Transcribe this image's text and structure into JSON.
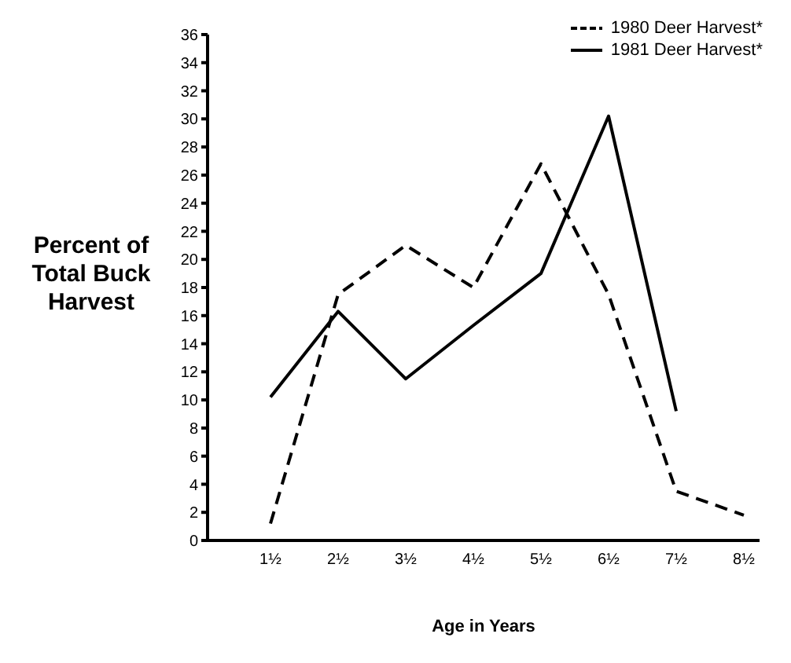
{
  "chart_data": {
    "type": "line",
    "xlabel": "Age in Years",
    "ylabel": "Percent of Total Buck Harvest",
    "categories": [
      "1½",
      "2½",
      "3½",
      "4½",
      "5½",
      "6½",
      "7½",
      "8½"
    ],
    "series": [
      {
        "name": "1980 Deer Harvest*",
        "color": "#000000",
        "line_style": "dashed",
        "values": [
          1.2,
          17.5,
          21,
          18,
          26.8,
          17.5,
          3.5,
          1.8
        ]
      },
      {
        "name": "1981 Deer Harvest*",
        "color": "#000000",
        "line_style": "solid",
        "values": [
          10.2,
          16.3,
          11.5,
          15.3,
          19,
          30.2,
          9.2,
          null
        ]
      }
    ],
    "ylim": [
      0,
      36
    ],
    "yticks": [
      0,
      2,
      4,
      6,
      8,
      10,
      12,
      14,
      16,
      18,
      20,
      22,
      24,
      26,
      28,
      30,
      32,
      34,
      36
    ],
    "grid": false,
    "legend": "top right",
    "marker": "none"
  }
}
